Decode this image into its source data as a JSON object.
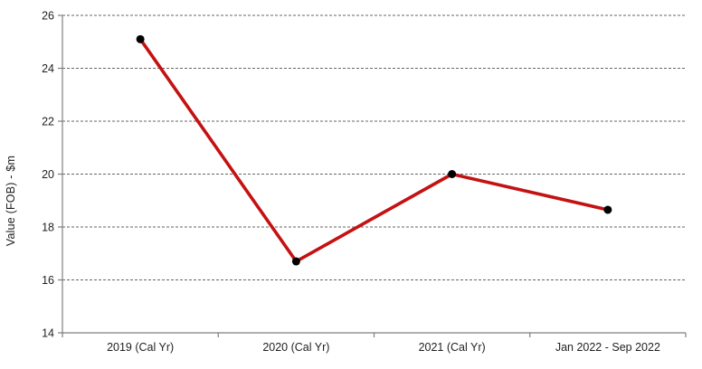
{
  "chart_data": {
    "type": "line",
    "title": "",
    "xlabel": "",
    "ylabel": "Value (FOB) - $m",
    "categories": [
      "2019 (Cal Yr)",
      "2020 (Cal Yr)",
      "2021 (Cal Yr)",
      "Jan 2022 - Sep 2022"
    ],
    "series": [
      {
        "name": "Value (FOB) - $m",
        "values": [
          25.1,
          16.7,
          20.0,
          18.65
        ]
      }
    ],
    "ylim": [
      14,
      26
    ],
    "yticks": [
      14,
      16,
      18,
      20,
      22,
      24,
      26
    ],
    "grid": "horizontal-dashed",
    "legend": "none"
  },
  "colors": {
    "line": "#c41212",
    "marker": "#000000",
    "gridline": "#666666",
    "axis": "#7f7f7f",
    "text": "#1f1f1f",
    "background": "#ffffff"
  }
}
